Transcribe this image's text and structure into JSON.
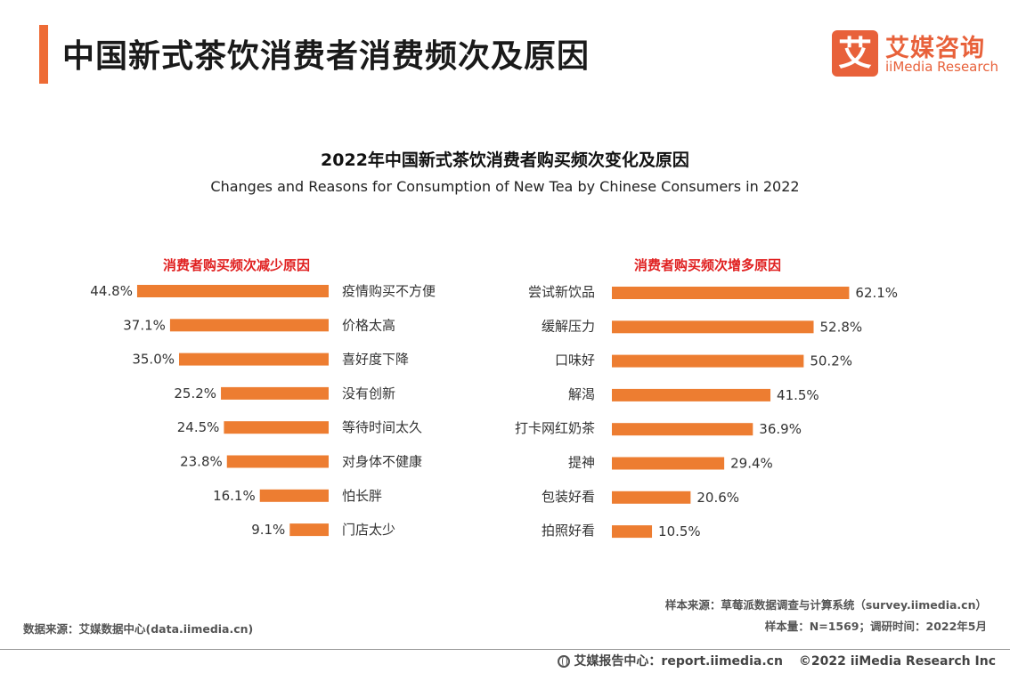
{
  "header": {
    "title": "中国新式茶饮消费者消费频次及原因",
    "logo_mark": "艾",
    "logo_cn": "艾媒咨询",
    "logo_en": "iiMedia Research"
  },
  "chart_data": [
    {
      "type": "bar",
      "orientation": "horizontal",
      "title": "2022年中国新式茶饮消费者购买频次变化及原因",
      "subtitle": "Changes and Reasons for Consumption of New Tea by Chinese Consumers in 2022",
      "panel_title": "消费者购买频次减少原因",
      "categories": [
        "疫情购买不方便",
        "价格太高",
        "喜好度下降",
        "没有创新",
        "等待时间太久",
        "对身体不健康",
        "怕长胖",
        "门店太少"
      ],
      "values": [
        44.8,
        37.1,
        35.0,
        25.2,
        24.5,
        23.8,
        16.1,
        9.1
      ],
      "value_labels": [
        "44.8%",
        "37.1%",
        "35.0%",
        "25.2%",
        "24.5%",
        "23.8%",
        "16.1%",
        "9.1%"
      ],
      "unit": "%",
      "bar_direction": "right-to-left",
      "color": "#ed7d31"
    },
    {
      "type": "bar",
      "orientation": "horizontal",
      "panel_title": "消费者购买频次增多原因",
      "categories": [
        "尝试新饮品",
        "缓解压力",
        "口味好",
        "解渴",
        "打卡网红奶茶",
        "提神",
        "包装好看",
        "拍照好看"
      ],
      "values": [
        62.1,
        52.8,
        50.2,
        41.5,
        36.9,
        29.4,
        20.6,
        10.5
      ],
      "value_labels": [
        "62.1%",
        "52.8%",
        "50.2%",
        "41.5%",
        "36.9%",
        "29.4%",
        "20.6%",
        "10.5%"
      ],
      "unit": "%",
      "bar_direction": "left-to-right",
      "color": "#ed7d31"
    }
  ],
  "sources": {
    "sample_source": "样本来源：草莓派数据调查与计算系统（survey.iimedia.cn）",
    "sample_size": "样本量：N=1569；调研时间：2022年5月",
    "data_source": "数据来源：艾媒数据中心(data.iimedia.cn)"
  },
  "footer": {
    "report_center": "艾媒报告中心：report.iimedia.cn",
    "copyright": "©2022  iiMedia Research  Inc"
  }
}
